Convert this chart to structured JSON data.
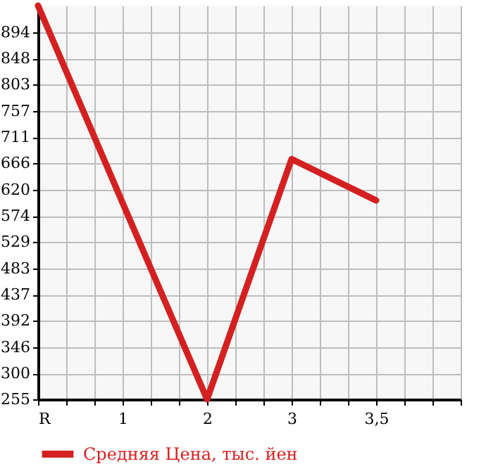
{
  "chart_data": {
    "type": "line",
    "categories": [
      "R",
      "1",
      "2",
      "3",
      "3,5",
      null
    ],
    "series": [
      {
        "name": "Средняя Цена, тыс. йен",
        "color": "#d42020",
        "values": [
          940,
          597,
          255,
          673,
          601,
          null
        ]
      }
    ],
    "ylim": [
      255,
      940
    ],
    "yticks": [
      255,
      300,
      346,
      392,
      437,
      483,
      529,
      574,
      620,
      666,
      711,
      757,
      803,
      848,
      894
    ],
    "grid": true,
    "legend": "bottom left",
    "marker": "none",
    "line_style": "solid"
  }
}
